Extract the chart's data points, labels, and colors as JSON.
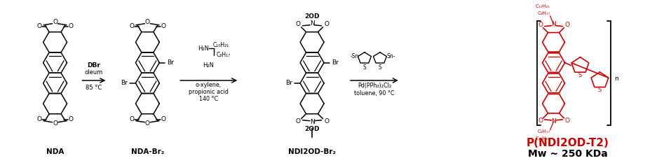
{
  "background_color": "#ffffff",
  "figure_width": 9.57,
  "figure_height": 2.33,
  "dpi": 100,
  "black": "#000000",
  "red": "#cc0000",
  "arrow1_label1": "DBr",
  "arrow1_label2": "oleum",
  "arrow1_label3": "85 °C",
  "arrow2_label1": "C₁₀H₂₁",
  "arrow2_label2": "C₈H₁₇",
  "arrow2_label3": "o-xylene,",
  "arrow2_label4": "propionic acid",
  "arrow2_label5": "140 °C",
  "arrow3_label1": "Pd(PPh₃)₂Cl₂",
  "arrow3_label2": "toluene, 90 °C",
  "label_nda": "NDA",
  "label_nda_br2": "NDA-Br₂",
  "label_ndi2od_br2": "NDI2OD-Br₂",
  "label_product_red": "P(NDI2OD-T2)",
  "label_mw": "Mw ~ 250 KDa"
}
